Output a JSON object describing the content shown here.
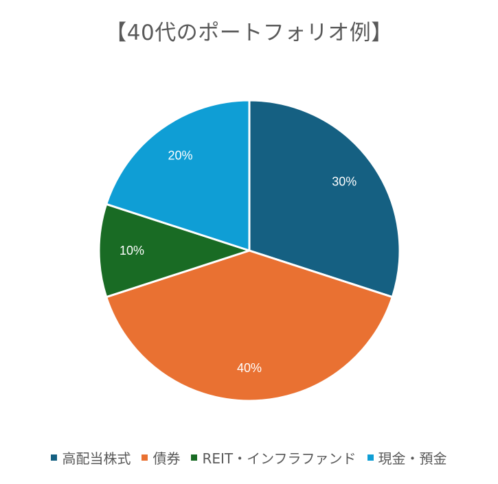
{
  "chart_data": {
    "type": "pie",
    "title": "【40代のポートフォリオ例】",
    "categories": [
      "高配当株式",
      "債券",
      "REIT・インフラファンド",
      "現金・預金"
    ],
    "values": [
      30,
      40,
      10,
      20
    ],
    "labels": [
      "30%",
      "40%",
      "10%",
      "20%"
    ],
    "colors": [
      "#156082",
      "#E97132",
      "#196B24",
      "#0F9ED5"
    ],
    "legend_position": "bottom"
  }
}
